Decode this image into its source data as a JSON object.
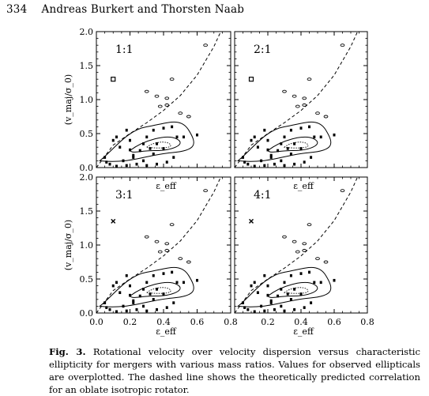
{
  "header": {
    "page_number": "334",
    "authors": "Andreas Burkert and Thorsten Naab"
  },
  "caption": {
    "label": "Fig. 3.",
    "text": "Rotational velocity over velocity dispersion versus characteristic ellipticity for mergers with various mass ratios. Values for observed ellipticals are overplotted. The dashed line shows the theoretically predicted correlation for an oblate isotropic rotator."
  },
  "chart_data": {
    "type": "scatter",
    "layout": "2x2 grid",
    "xlabel": "ε_eff",
    "ylabel": "(v_maj/σ_0)",
    "xlim": [
      0.0,
      0.8
    ],
    "ylim": [
      0.0,
      2.0
    ],
    "xticks": [
      "0.0",
      "0.2",
      "0.4",
      "0.6",
      "0.8"
    ],
    "yticks": [
      "0.0",
      "0.5",
      "1.0",
      "1.5",
      "2.0"
    ],
    "panels": [
      {
        "label": "1:1",
        "special_point": [
          0.1,
          1.3
        ],
        "special_symbol": "square"
      },
      {
        "label": "2:1",
        "special_point": [
          0.1,
          1.3
        ],
        "special_symbol": "square"
      },
      {
        "label": "3:1",
        "special_point": [
          0.1,
          1.35
        ],
        "special_symbol": "x"
      },
      {
        "label": "4:1",
        "special_point": [
          0.1,
          1.35
        ],
        "special_symbol": "x"
      }
    ],
    "observed_ellipticals": [
      [
        0.65,
        1.8
      ],
      [
        0.42,
        1.02
      ],
      [
        0.36,
        1.05
      ],
      [
        0.3,
        1.12
      ],
      [
        0.45,
        1.3
      ],
      [
        0.38,
        0.9
      ],
      [
        0.42,
        0.92
      ],
      [
        0.5,
        0.8
      ],
      [
        0.55,
        0.75
      ],
      [
        0.45,
        0.6
      ],
      [
        0.4,
        0.58
      ],
      [
        0.34,
        0.55
      ],
      [
        0.48,
        0.45
      ],
      [
        0.52,
        0.45
      ],
      [
        0.6,
        0.48
      ],
      [
        0.3,
        0.45
      ],
      [
        0.28,
        0.35
      ],
      [
        0.36,
        0.35
      ],
      [
        0.2,
        0.4
      ],
      [
        0.12,
        0.45
      ],
      [
        0.1,
        0.4
      ],
      [
        0.14,
        0.3
      ],
      [
        0.26,
        0.25
      ],
      [
        0.34,
        0.2
      ],
      [
        0.4,
        0.28
      ],
      [
        0.22,
        0.15
      ],
      [
        0.28,
        0.1
      ],
      [
        0.16,
        0.1
      ],
      [
        0.08,
        0.05
      ],
      [
        0.12,
        0.02
      ],
      [
        0.18,
        0.03
      ],
      [
        0.24,
        0.05
      ],
      [
        0.3,
        0.03
      ],
      [
        0.36,
        0.05
      ],
      [
        0.42,
        0.08
      ],
      [
        0.05,
        0.15
      ],
      [
        0.06,
        0.08
      ],
      [
        0.18,
        0.55
      ],
      [
        0.22,
        0.18
      ],
      [
        0.46,
        0.15
      ],
      [
        0.2,
        0.26
      ],
      [
        0.32,
        0.28
      ]
    ],
    "oblate_rotator_curve": [
      [
        0.0,
        0.0
      ],
      [
        0.1,
        0.33
      ],
      [
        0.2,
        0.5
      ],
      [
        0.3,
        0.66
      ],
      [
        0.4,
        0.84
      ],
      [
        0.5,
        1.06
      ],
      [
        0.6,
        1.36
      ],
      [
        0.7,
        1.78
      ],
      [
        0.75,
        2.05
      ]
    ]
  }
}
